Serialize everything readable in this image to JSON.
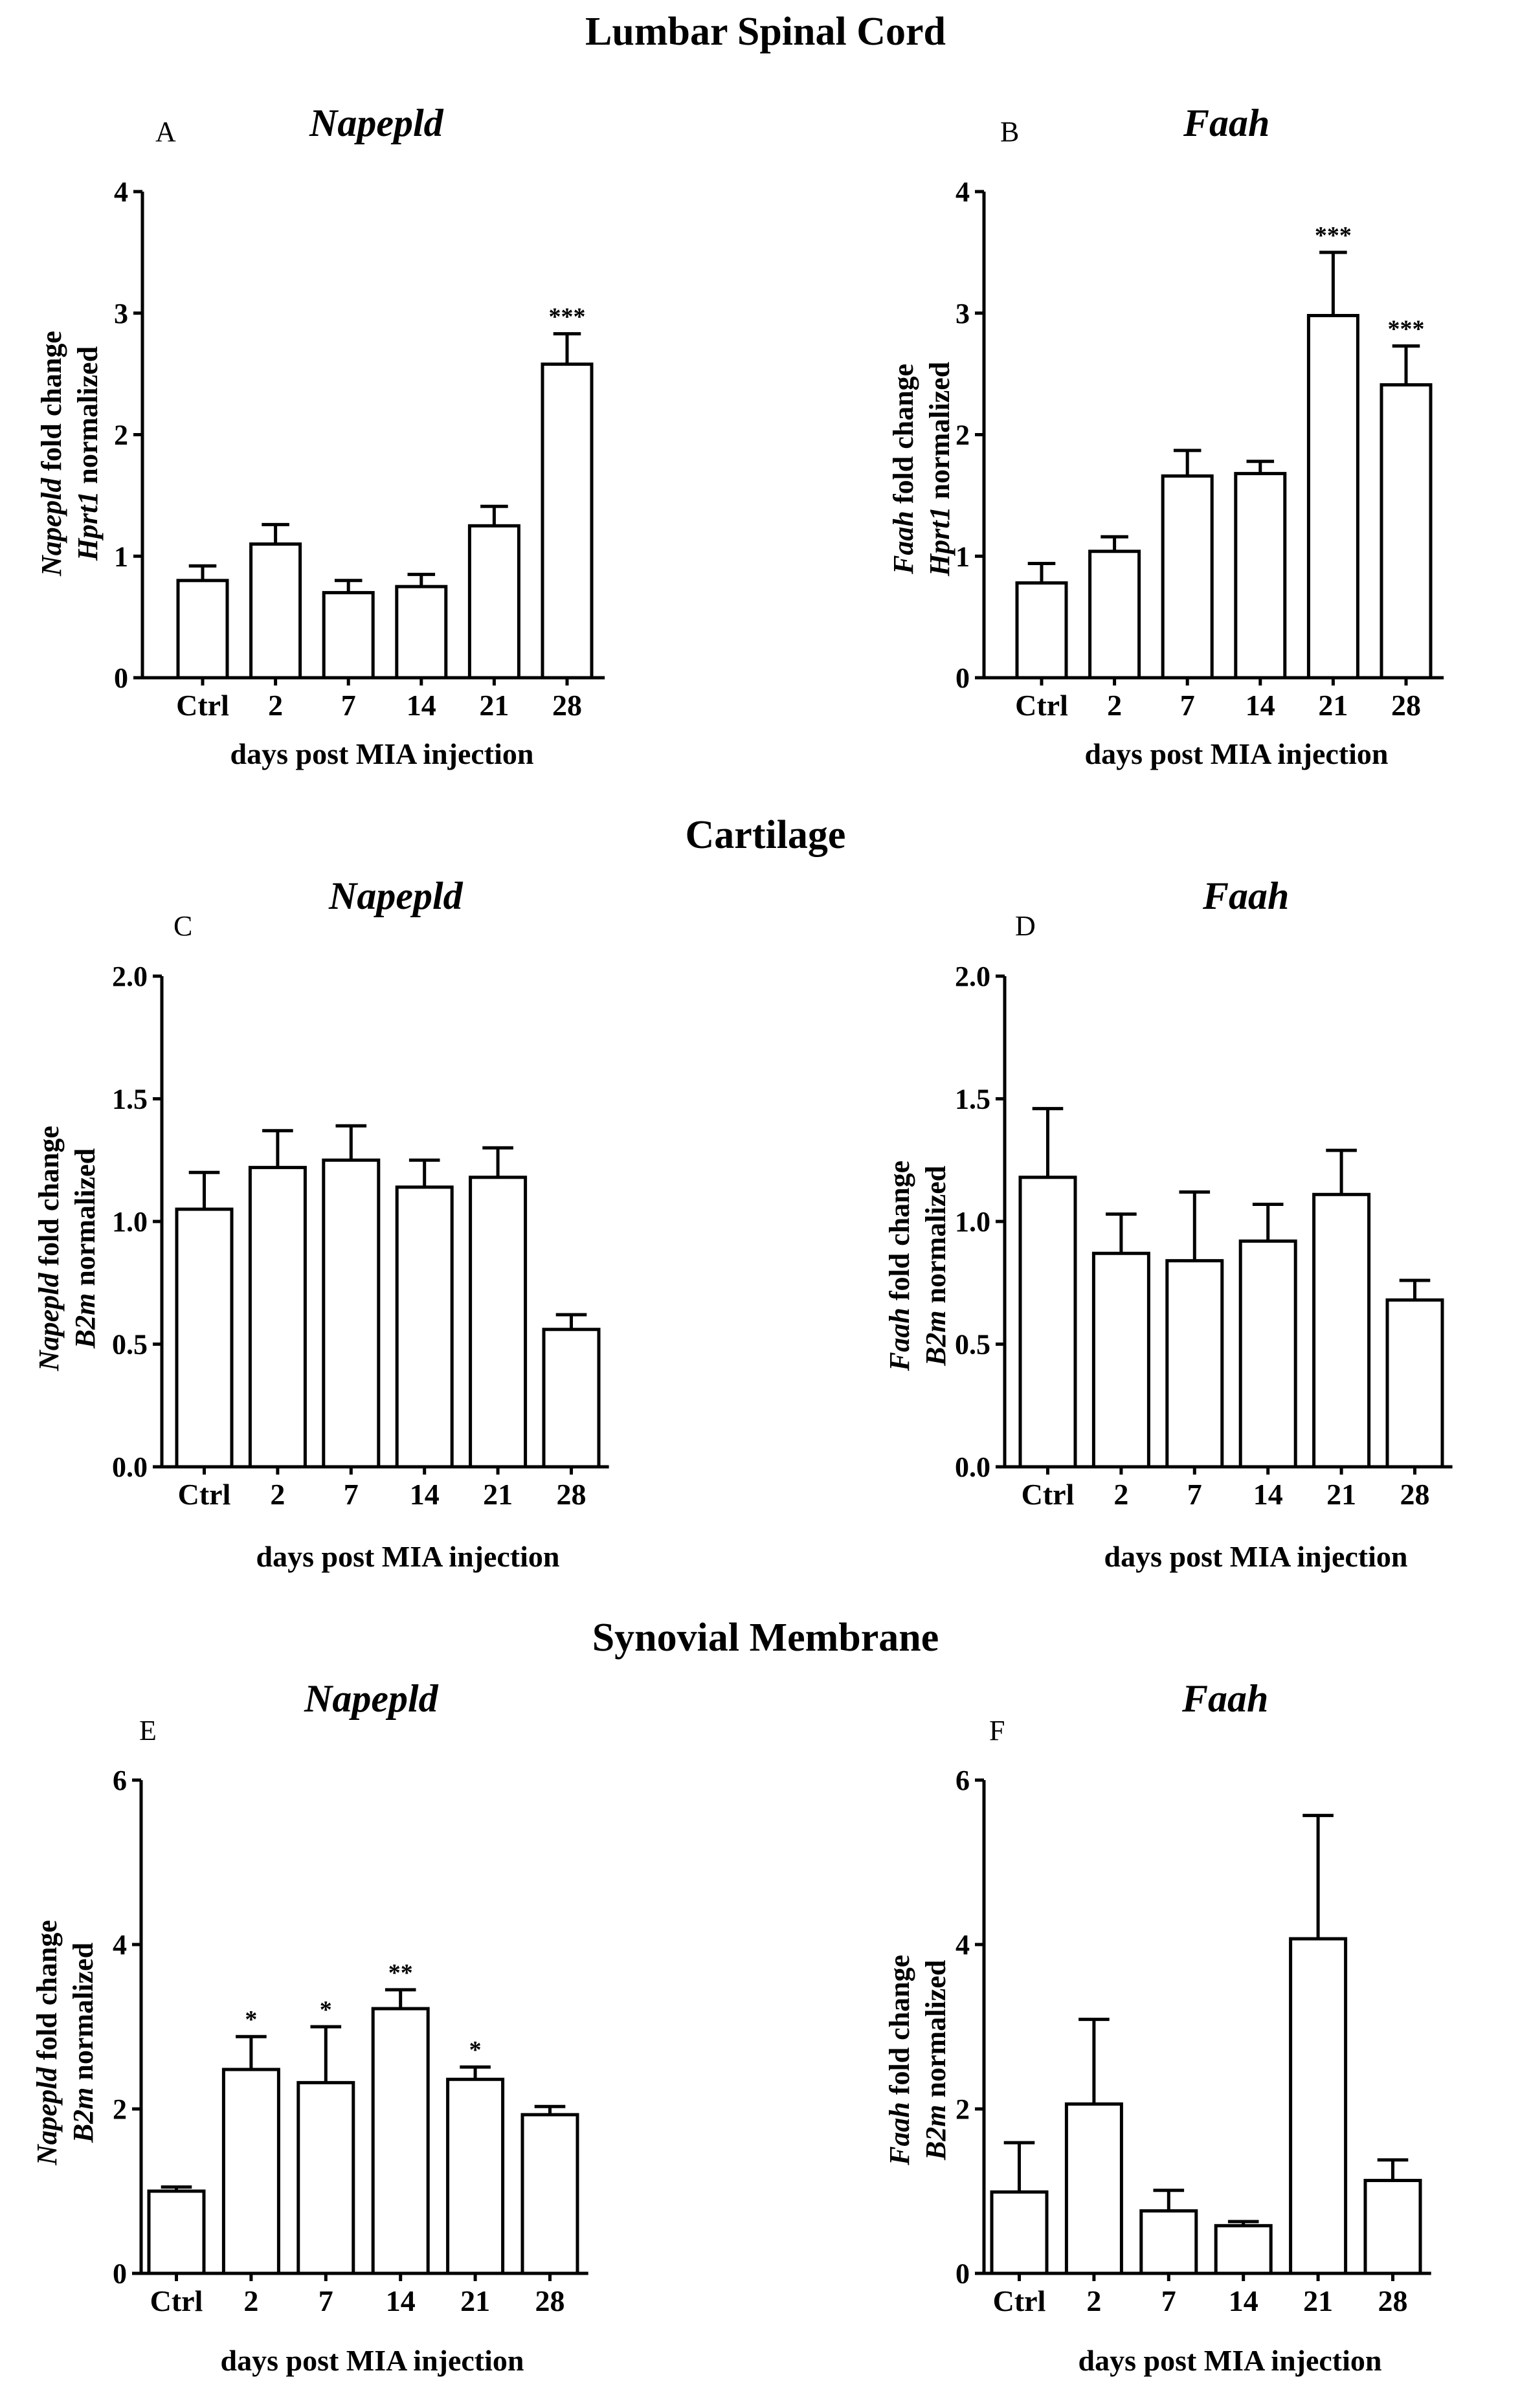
{
  "sections": [
    "Lumbar Spinal Cord",
    "Cartilage",
    "Synovial Membrane"
  ],
  "chart_data": [
    {
      "id": "A",
      "type": "bar",
      "section": "Lumbar Spinal Cord",
      "title": "Napepld",
      "letter": "A",
      "ylabel_gene": "Napepld",
      "ylabel_suffix": " fold change",
      "ylabel_ref": "Hprt1",
      "ylabel_norm": " normalized",
      "xlabel": "days post MIA injection",
      "categories": [
        "Ctrl",
        "2",
        "7",
        "14",
        "21",
        "28"
      ],
      "values": [
        0.8,
        1.1,
        0.7,
        0.75,
        1.25,
        2.58
      ],
      "errors": [
        0.12,
        0.16,
        0.1,
        0.1,
        0.16,
        0.25
      ],
      "significance": [
        "",
        "",
        "",
        "",
        "",
        "***"
      ],
      "ylim": [
        0,
        4
      ],
      "yticks": [
        0,
        1,
        2,
        3,
        4
      ],
      "ytick_labels": [
        "0",
        "1",
        "2",
        "3",
        "4"
      ]
    },
    {
      "id": "B",
      "type": "bar",
      "section": "Lumbar Spinal Cord",
      "title": "Faah",
      "letter": "B",
      "ylabel_gene": "Faah",
      "ylabel_suffix": " fold change",
      "ylabel_ref": "Hprt1",
      "ylabel_norm": " normalized",
      "xlabel": "days post MIA injection",
      "categories": [
        "Ctrl",
        "2",
        "7",
        "14",
        "21",
        "28"
      ],
      "values": [
        0.78,
        1.04,
        1.66,
        1.68,
        2.98,
        2.41
      ],
      "errors": [
        0.16,
        0.12,
        0.21,
        0.1,
        0.52,
        0.32
      ],
      "significance": [
        "",
        "",
        "",
        "",
        "***",
        "***"
      ],
      "ylim": [
        0,
        4
      ],
      "yticks": [
        0,
        1,
        2,
        3,
        4
      ],
      "ytick_labels": [
        "0",
        "1",
        "2",
        "3",
        "4"
      ]
    },
    {
      "id": "C",
      "type": "bar",
      "section": "Cartilage",
      "title": "Napepld",
      "letter": "C",
      "ylabel_gene": "Napepld",
      "ylabel_suffix": " fold change",
      "ylabel_ref": "B2m",
      "ylabel_norm": " normalized",
      "xlabel": "days post MIA injection",
      "categories": [
        "Ctrl",
        "2",
        "7",
        "14",
        "21",
        "28"
      ],
      "values": [
        1.05,
        1.22,
        1.25,
        1.14,
        1.18,
        0.56
      ],
      "errors": [
        0.15,
        0.15,
        0.14,
        0.11,
        0.12,
        0.06
      ],
      "significance": [
        "",
        "",
        "",
        "",
        "",
        ""
      ],
      "ylim": [
        0,
        2
      ],
      "yticks": [
        0,
        0.5,
        1,
        1.5,
        2
      ],
      "ytick_labels": [
        "0.0",
        "0.5",
        "1.0",
        "1.5",
        "2.0"
      ]
    },
    {
      "id": "D",
      "type": "bar",
      "section": "Cartilage",
      "title": "Faah",
      "letter": "D",
      "ylabel_gene": "Faah",
      "ylabel_suffix": " fold change",
      "ylabel_ref": "B2m",
      "ylabel_norm": " normalized",
      "xlabel": "days post MIA injection",
      "categories": [
        "Ctrl",
        "2",
        "7",
        "14",
        "21",
        "28"
      ],
      "values": [
        1.18,
        0.87,
        0.84,
        0.92,
        1.11,
        0.68
      ],
      "errors": [
        0.28,
        0.16,
        0.28,
        0.15,
        0.18,
        0.08
      ],
      "significance": [
        "",
        "",
        "",
        "",
        "",
        ""
      ],
      "ylim": [
        0,
        2
      ],
      "yticks": [
        0,
        0.5,
        1,
        1.5,
        2
      ],
      "ytick_labels": [
        "0.0",
        "0.5",
        "1.0",
        "1.5",
        "2.0"
      ]
    },
    {
      "id": "E",
      "type": "bar",
      "section": "Synovial Membrane",
      "title": "Napepld",
      "letter": "E",
      "ylabel_gene": "Napepld",
      "ylabel_suffix": " fold change",
      "ylabel_ref": "B2m",
      "ylabel_norm": " normalized",
      "xlabel": "days post MIA injection",
      "categories": [
        "Ctrl",
        "2",
        "7",
        "14",
        "21",
        "28"
      ],
      "values": [
        1.0,
        2.48,
        2.32,
        3.22,
        2.36,
        1.93
      ],
      "errors": [
        0.05,
        0.4,
        0.68,
        0.23,
        0.15,
        0.1
      ],
      "significance": [
        "",
        "*",
        "*",
        "**",
        "*",
        ""
      ],
      "ylim": [
        0,
        6
      ],
      "yticks": [
        0,
        2,
        4,
        6
      ],
      "ytick_labels": [
        "0",
        "2",
        "4",
        "6"
      ]
    },
    {
      "id": "F",
      "type": "bar",
      "section": "Synovial Membrane",
      "title": "Faah",
      "letter": "F",
      "ylabel_gene": "Faah",
      "ylabel_suffix": " fold change",
      "ylabel_ref": "B2m",
      "ylabel_norm": " normalized",
      "xlabel": "days post MIA injection",
      "categories": [
        "Ctrl",
        "2",
        "7",
        "14",
        "21",
        "28"
      ],
      "values": [
        0.99,
        2.06,
        0.76,
        0.58,
        4.07,
        1.13
      ],
      "errors": [
        0.6,
        1.03,
        0.25,
        0.05,
        1.5,
        0.25
      ],
      "significance": [
        "",
        "",
        "",
        "",
        "",
        ""
      ],
      "ylim": [
        0,
        6
      ],
      "yticks": [
        0,
        2,
        4,
        6
      ],
      "ytick_labels": [
        "0",
        "2",
        "4",
        "6"
      ]
    }
  ]
}
